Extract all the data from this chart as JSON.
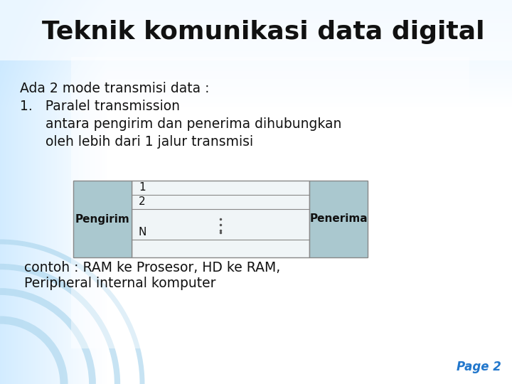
{
  "title": "Teknik komunikasi data digital",
  "title_fontsize": 26,
  "title_color": "#111111",
  "body_lines": [
    "Ada 2 mode transmisi data :",
    "1.   Paralel transmission",
    "      antara pengirim dan penerima dihubungkan",
    "      oleh lebih dari 1 jalur transmisi"
  ],
  "body_fontsize": 13.5,
  "body_color": "#111111",
  "example_line1": " contoh : RAM ke Prosesor, HD ke RAM,",
  "example_line2": " Peripheral internal komputer",
  "example_fontsize": 13.5,
  "box_left_label": "Pengirim",
  "box_right_label": "Penerima",
  "box_fill": "#aac8cf",
  "box_edge": "#888888",
  "channel_fill": "#f0f5f7",
  "line_labels": [
    "1",
    "2",
    "N"
  ],
  "dot_char": ".",
  "page_label": "Page 2",
  "page_color": "#2277cc",
  "page_fontsize": 12
}
